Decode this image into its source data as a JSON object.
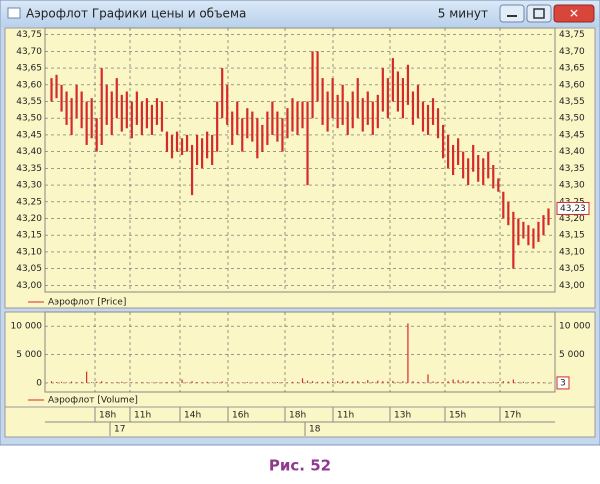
{
  "window": {
    "title": "Аэрофлот Графики цены и объема",
    "interval": "5 минут"
  },
  "chart_data": [
    {
      "type": "range-bar",
      "ylim": [
        42.98,
        43.77
      ],
      "yticks": [
        {
          "value": 43.0,
          "label": "43,00"
        },
        {
          "value": 43.05,
          "label": "43,05"
        },
        {
          "value": 43.1,
          "label": "43,10"
        },
        {
          "value": 43.15,
          "label": "43,15"
        },
        {
          "value": 43.2,
          "label": "43,20"
        },
        {
          "value": 43.25,
          "label": "43,25"
        },
        {
          "value": 43.3,
          "label": "43,30"
        },
        {
          "value": 43.35,
          "label": "43,35"
        },
        {
          "value": 43.4,
          "label": "43,40"
        },
        {
          "value": 43.45,
          "label": "43,45"
        },
        {
          "value": 43.5,
          "label": "43,50"
        },
        {
          "value": 43.55,
          "label": "43,55"
        },
        {
          "value": 43.6,
          "label": "43,60"
        },
        {
          "value": 43.65,
          "label": "43,65"
        },
        {
          "value": 43.7,
          "label": "43,70"
        },
        {
          "value": 43.75,
          "label": "43,75"
        }
      ],
      "last_value": {
        "value": 43.23,
        "label": "43,23"
      },
      "grid": true,
      "series": [
        {
          "name": "Аэрофлот [Price]",
          "color": "#d42a2a",
          "low": [
            43.55,
            43.56,
            43.52,
            43.48,
            43.45,
            43.5,
            43.47,
            43.42,
            43.44,
            43.4,
            43.42,
            43.48,
            43.45,
            43.5,
            43.46,
            43.47,
            43.44,
            43.48,
            43.45,
            43.47,
            43.45,
            43.48,
            43.46,
            43.4,
            43.38,
            43.4,
            43.39,
            43.4,
            43.27,
            43.36,
            43.35,
            43.38,
            43.36,
            43.4,
            43.5,
            43.48,
            43.42,
            43.45,
            43.4,
            43.44,
            43.43,
            43.38,
            43.4,
            43.42,
            43.45,
            43.43,
            43.4,
            43.44,
            43.46,
            43.45,
            43.47,
            43.3,
            43.5,
            43.55,
            43.48,
            43.46,
            43.5,
            43.47,
            43.48,
            43.45,
            43.47,
            43.5,
            43.46,
            43.48,
            43.45,
            43.47,
            43.52,
            43.5,
            43.55,
            43.52,
            43.5,
            43.54,
            43.48,
            43.5,
            43.46,
            43.45,
            43.48,
            43.44,
            43.38,
            43.35,
            43.33,
            43.36,
            43.32,
            43.3,
            43.34,
            43.31,
            43.3,
            43.32,
            43.29,
            43.28,
            43.2,
            43.18,
            43.05,
            43.12,
            43.14,
            43.12,
            43.11,
            43.13,
            43.15,
            43.18
          ],
          "high": [
            43.62,
            43.63,
            43.6,
            43.58,
            43.56,
            43.6,
            43.58,
            43.55,
            43.56,
            43.5,
            43.65,
            43.6,
            43.58,
            43.62,
            43.57,
            43.58,
            43.55,
            43.58,
            43.55,
            43.56,
            43.54,
            43.56,
            43.55,
            43.46,
            43.45,
            43.46,
            43.44,
            43.45,
            43.42,
            43.45,
            43.44,
            43.46,
            43.45,
            43.55,
            43.65,
            43.6,
            43.52,
            43.55,
            43.5,
            43.53,
            43.52,
            43.5,
            43.48,
            43.52,
            43.55,
            43.52,
            43.5,
            43.53,
            43.56,
            43.55,
            43.55,
            43.55,
            43.7,
            43.7,
            43.62,
            43.58,
            43.62,
            43.57,
            43.6,
            43.55,
            43.58,
            43.62,
            43.56,
            43.58,
            43.55,
            43.57,
            43.65,
            43.62,
            43.68,
            43.64,
            43.62,
            43.66,
            43.58,
            43.6,
            43.55,
            43.54,
            43.56,
            43.53,
            43.48,
            43.45,
            43.42,
            43.44,
            43.4,
            43.38,
            43.42,
            43.39,
            43.38,
            43.4,
            43.36,
            43.32,
            43.28,
            43.25,
            43.22,
            43.2,
            43.19,
            43.18,
            43.17,
            43.19,
            43.21,
            43.23
          ]
        }
      ]
    },
    {
      "type": "bar",
      "ylim": [
        -1600,
        12500
      ],
      "yticks": [
        0,
        {
          "value": 5000,
          "label": "5 000"
        },
        {
          "value": 10000,
          "label": "10 000"
        }
      ],
      "grid": true,
      "series": [
        {
          "name": "Аэрофлот [Volume]",
          "color": "#d42a2a",
          "values": [
            300,
            150,
            200,
            100,
            250,
            120,
            180,
            2000,
            150,
            200,
            300,
            120,
            100,
            150,
            200,
            100,
            120,
            90,
            150,
            100,
            80,
            120,
            100,
            150,
            200,
            100,
            600,
            120,
            300,
            150,
            100,
            200,
            120,
            150,
            250,
            100,
            80,
            120,
            100,
            150,
            90,
            100,
            120,
            80,
            100,
            150,
            120,
            100,
            200,
            150,
            800,
            400,
            300,
            200,
            150,
            250,
            180,
            300,
            400,
            200,
            250,
            300,
            150,
            500,
            200,
            400,
            300,
            250,
            350,
            200,
            300,
            10500,
            300,
            200,
            150,
            1500,
            250,
            200,
            150,
            300,
            600,
            500,
            400,
            300,
            200,
            250,
            150,
            100,
            200,
            150,
            300,
            250,
            600,
            150,
            200,
            100,
            150,
            120,
            100,
            3
          ]
        }
      ]
    }
  ],
  "time_axis": {
    "hours": [
      "18h",
      "11h",
      "14h",
      "16h",
      "18h",
      "11h",
      "13h",
      "15h",
      "17h"
    ],
    "days": [
      "17",
      "18"
    ]
  },
  "caption": "Рис. 52"
}
